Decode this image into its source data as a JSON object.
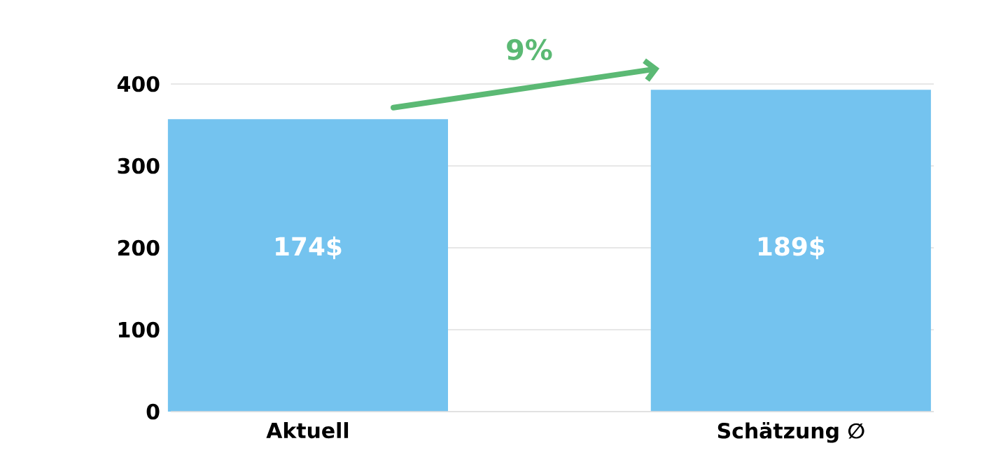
{
  "chart_data": {
    "type": "bar",
    "categories": [
      "Aktuell",
      "Schätzung ∅"
    ],
    "values": [
      357,
      393
    ],
    "color": "#74c3ef",
    "ylim": [
      0,
      400
    ],
    "yticks": [
      0,
      100,
      200,
      300,
      400
    ],
    "grid": "y",
    "annotations": [
      "9%",
      "174$",
      "189$"
    ]
  }
}
